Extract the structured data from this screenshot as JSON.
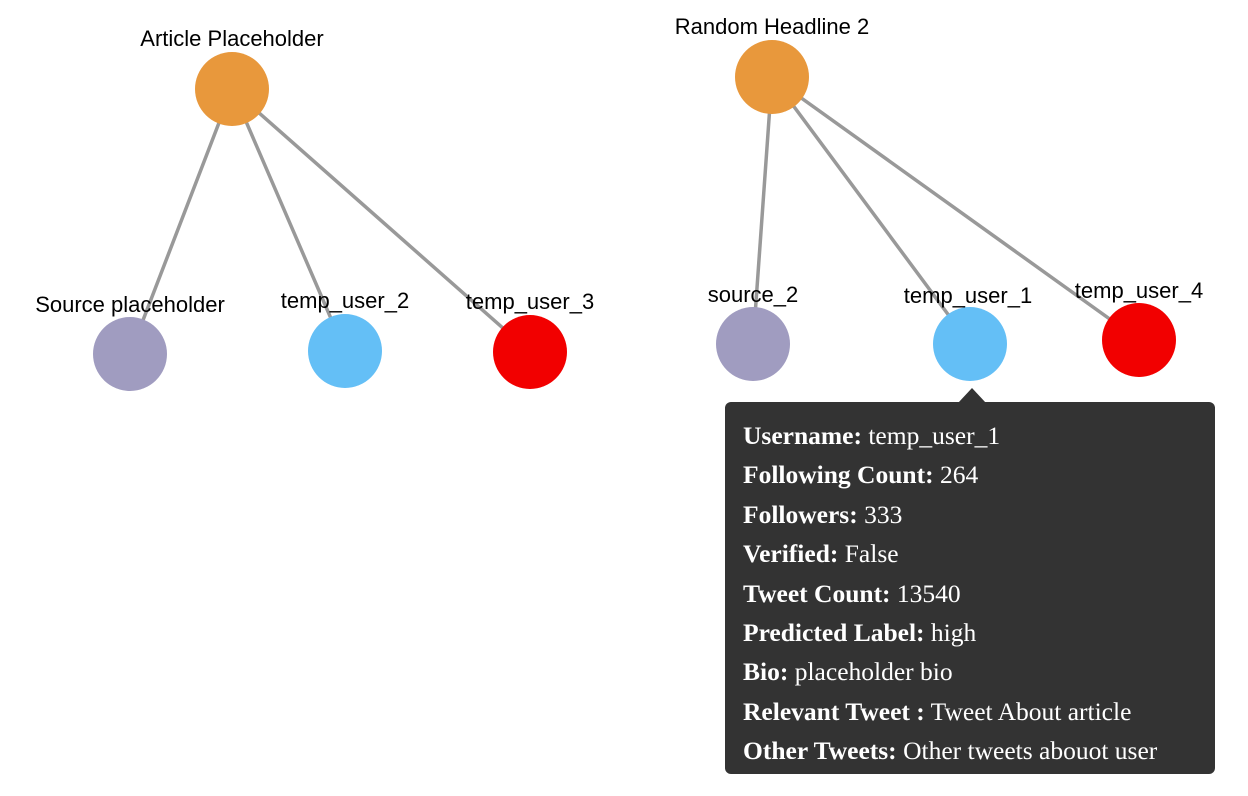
{
  "graph": {
    "nodes": [
      {
        "id": "article1",
        "label": "Article Placeholder",
        "type": "article",
        "color": "#E8983C"
      },
      {
        "id": "source1",
        "label": "Source placeholder",
        "type": "source",
        "color": "#A09CC0"
      },
      {
        "id": "user2",
        "label": "temp_user_2",
        "type": "user",
        "color": "#64BFF6"
      },
      {
        "id": "user3",
        "label": "temp_user_3",
        "type": "user",
        "color": "#F20000"
      },
      {
        "id": "article2",
        "label": "Random Headline 2",
        "type": "article",
        "color": "#E8983C"
      },
      {
        "id": "source2",
        "label": "source_2",
        "type": "source",
        "color": "#A09CC0"
      },
      {
        "id": "user1",
        "label": "temp_user_1",
        "type": "user",
        "color": "#64BFF6"
      },
      {
        "id": "user4",
        "label": "temp_user_4",
        "type": "user",
        "color": "#F20000"
      }
    ],
    "edges": [
      {
        "from": "article1",
        "to": "source1"
      },
      {
        "from": "article1",
        "to": "user2"
      },
      {
        "from": "article1",
        "to": "user3"
      },
      {
        "from": "article2",
        "to": "source2"
      },
      {
        "from": "article2",
        "to": "user1"
      },
      {
        "from": "article2",
        "to": "user4"
      }
    ],
    "edge_color": "#999999"
  },
  "tooltip": {
    "target": "user1",
    "rows": [
      {
        "key": "Username:",
        "value": "temp_user_1"
      },
      {
        "key": "Following Count:",
        "value": "264"
      },
      {
        "key": "Followers:",
        "value": "333"
      },
      {
        "key": "Verified:",
        "value": "False"
      },
      {
        "key": "Tweet Count:",
        "value": "13540"
      },
      {
        "key": "Predicted Label:",
        "value": "high"
      },
      {
        "key": "Bio:",
        "value": "placeholder bio"
      },
      {
        "key": "Relevant Tweet :",
        "value": "Tweet About article"
      },
      {
        "key": "Other Tweets:",
        "value": "Other tweets abouot user"
      }
    ]
  }
}
